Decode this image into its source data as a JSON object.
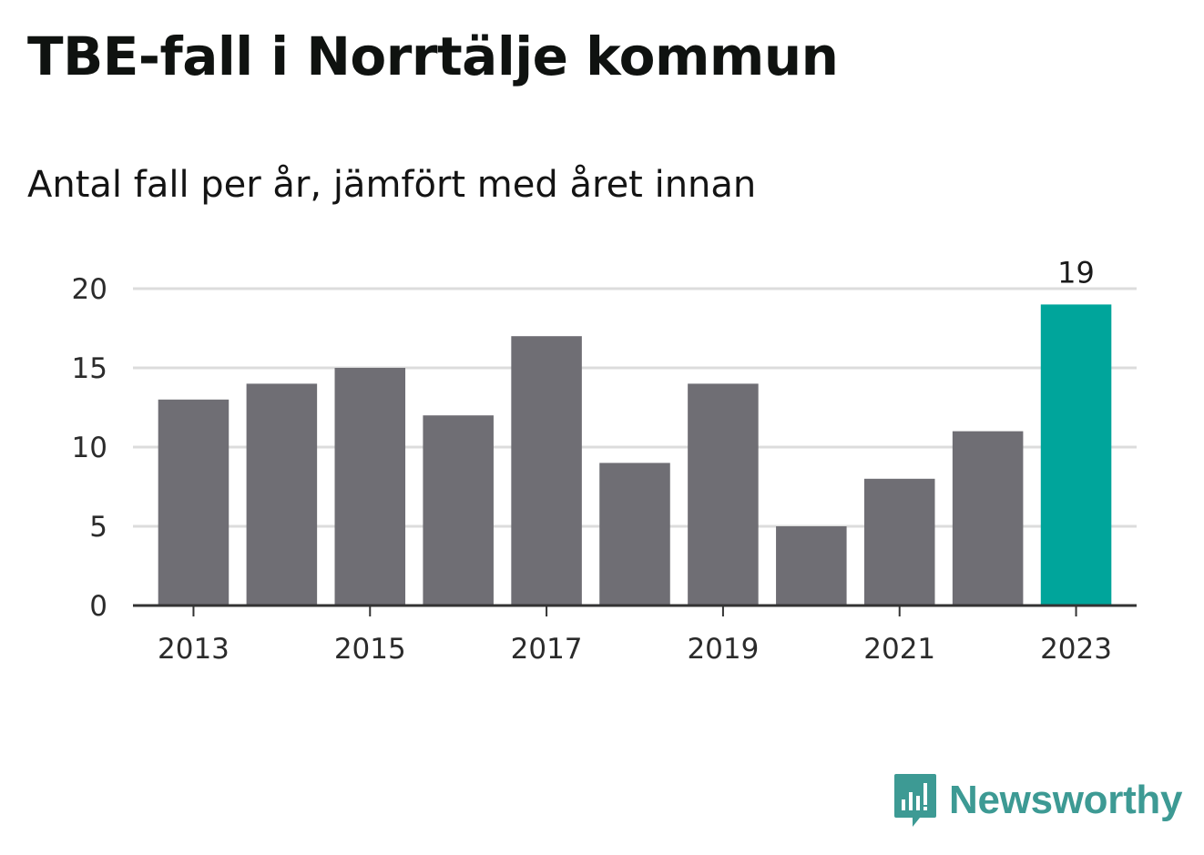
{
  "chart_data": {
    "type": "bar",
    "title": "TBE-fall i Norrtälje kommun",
    "subtitle": "Antal fall per år, jämfört med året innan",
    "categories": [
      2013,
      2014,
      2015,
      2016,
      2017,
      2018,
      2019,
      2020,
      2021,
      2022,
      2023
    ],
    "values": [
      13,
      14,
      15,
      12,
      17,
      9,
      14,
      5,
      8,
      11,
      19
    ],
    "x_tick_labels": [
      "2013",
      "2015",
      "2017",
      "2019",
      "2021",
      "2023"
    ],
    "y_ticks": [
      0,
      5,
      10,
      15,
      20
    ],
    "ylim": [
      0,
      20
    ],
    "grid": true,
    "highlight": {
      "category": 2023,
      "label": "19"
    },
    "colors": {
      "bar": "#6f6e74",
      "highlight": "#00a59b",
      "grid": "#dcdcdc",
      "axis": "#333333"
    }
  },
  "branding": {
    "name": "Newsworthy",
    "logo_icon": "newsworthy-logo-icon",
    "color": "#3d9a94"
  }
}
